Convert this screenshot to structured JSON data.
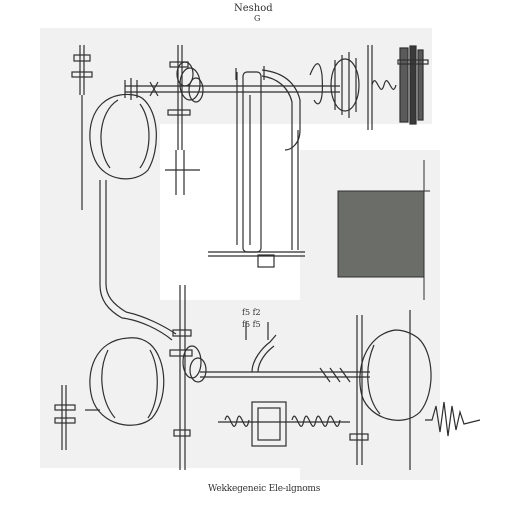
{
  "diagram": {
    "title": "Neshod",
    "subtitle": "G",
    "bottom_caption": "Wekkegeneic Ele-ılgnoms",
    "mid_label_1": "f5 f2",
    "mid_label_2": "f5 f5",
    "colors": {
      "ink": "#2f2f2f",
      "panel": "#f1f1f2",
      "block": "#6b6d69"
    }
  }
}
